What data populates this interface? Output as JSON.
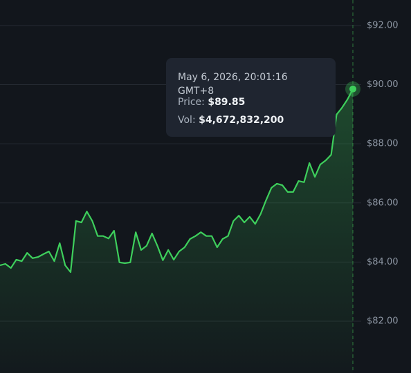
{
  "chart_data": {
    "type": "area",
    "values": [
      83.89,
      83.94,
      83.8,
      84.08,
      84.03,
      84.31,
      84.13,
      84.17,
      84.27,
      84.36,
      84.03,
      84.64,
      83.89,
      83.66,
      85.39,
      85.34,
      85.71,
      85.39,
      84.88,
      84.88,
      84.8,
      85.06,
      83.99,
      83.96,
      83.99,
      85.01,
      84.41,
      84.55,
      84.97,
      84.55,
      84.06,
      84.41,
      84.08,
      84.36,
      84.5,
      84.78,
      84.88,
      85.01,
      84.88,
      84.88,
      84.5,
      84.78,
      84.88,
      85.39,
      85.57,
      85.34,
      85.53,
      85.29,
      85.62,
      86.09,
      86.51,
      86.65,
      86.6,
      86.37,
      86.37,
      86.74,
      86.7,
      87.35,
      86.88,
      87.3,
      87.44,
      87.63,
      88.99,
      89.22,
      89.5,
      89.85
    ],
    "color": "#3ecf5c",
    "ylim": [
      80.25,
      92.86
    ],
    "yticks": [
      {
        "value": 82,
        "label": "$82.00"
      },
      {
        "value": 84,
        "label": "$84.00"
      },
      {
        "value": 86,
        "label": "$86.00"
      },
      {
        "value": 88,
        "label": "$88.00"
      },
      {
        "value": 90,
        "label": "$90.00"
      },
      {
        "value": 92,
        "label": "$92.00"
      }
    ],
    "grid": true,
    "tooltip": {
      "date": "May 6, 2026, 20:01:16 GMT+8",
      "price_label": "Price:",
      "price": "$89.85",
      "vol_label": "Vol:",
      "vol": "$4,672,832,200"
    }
  }
}
